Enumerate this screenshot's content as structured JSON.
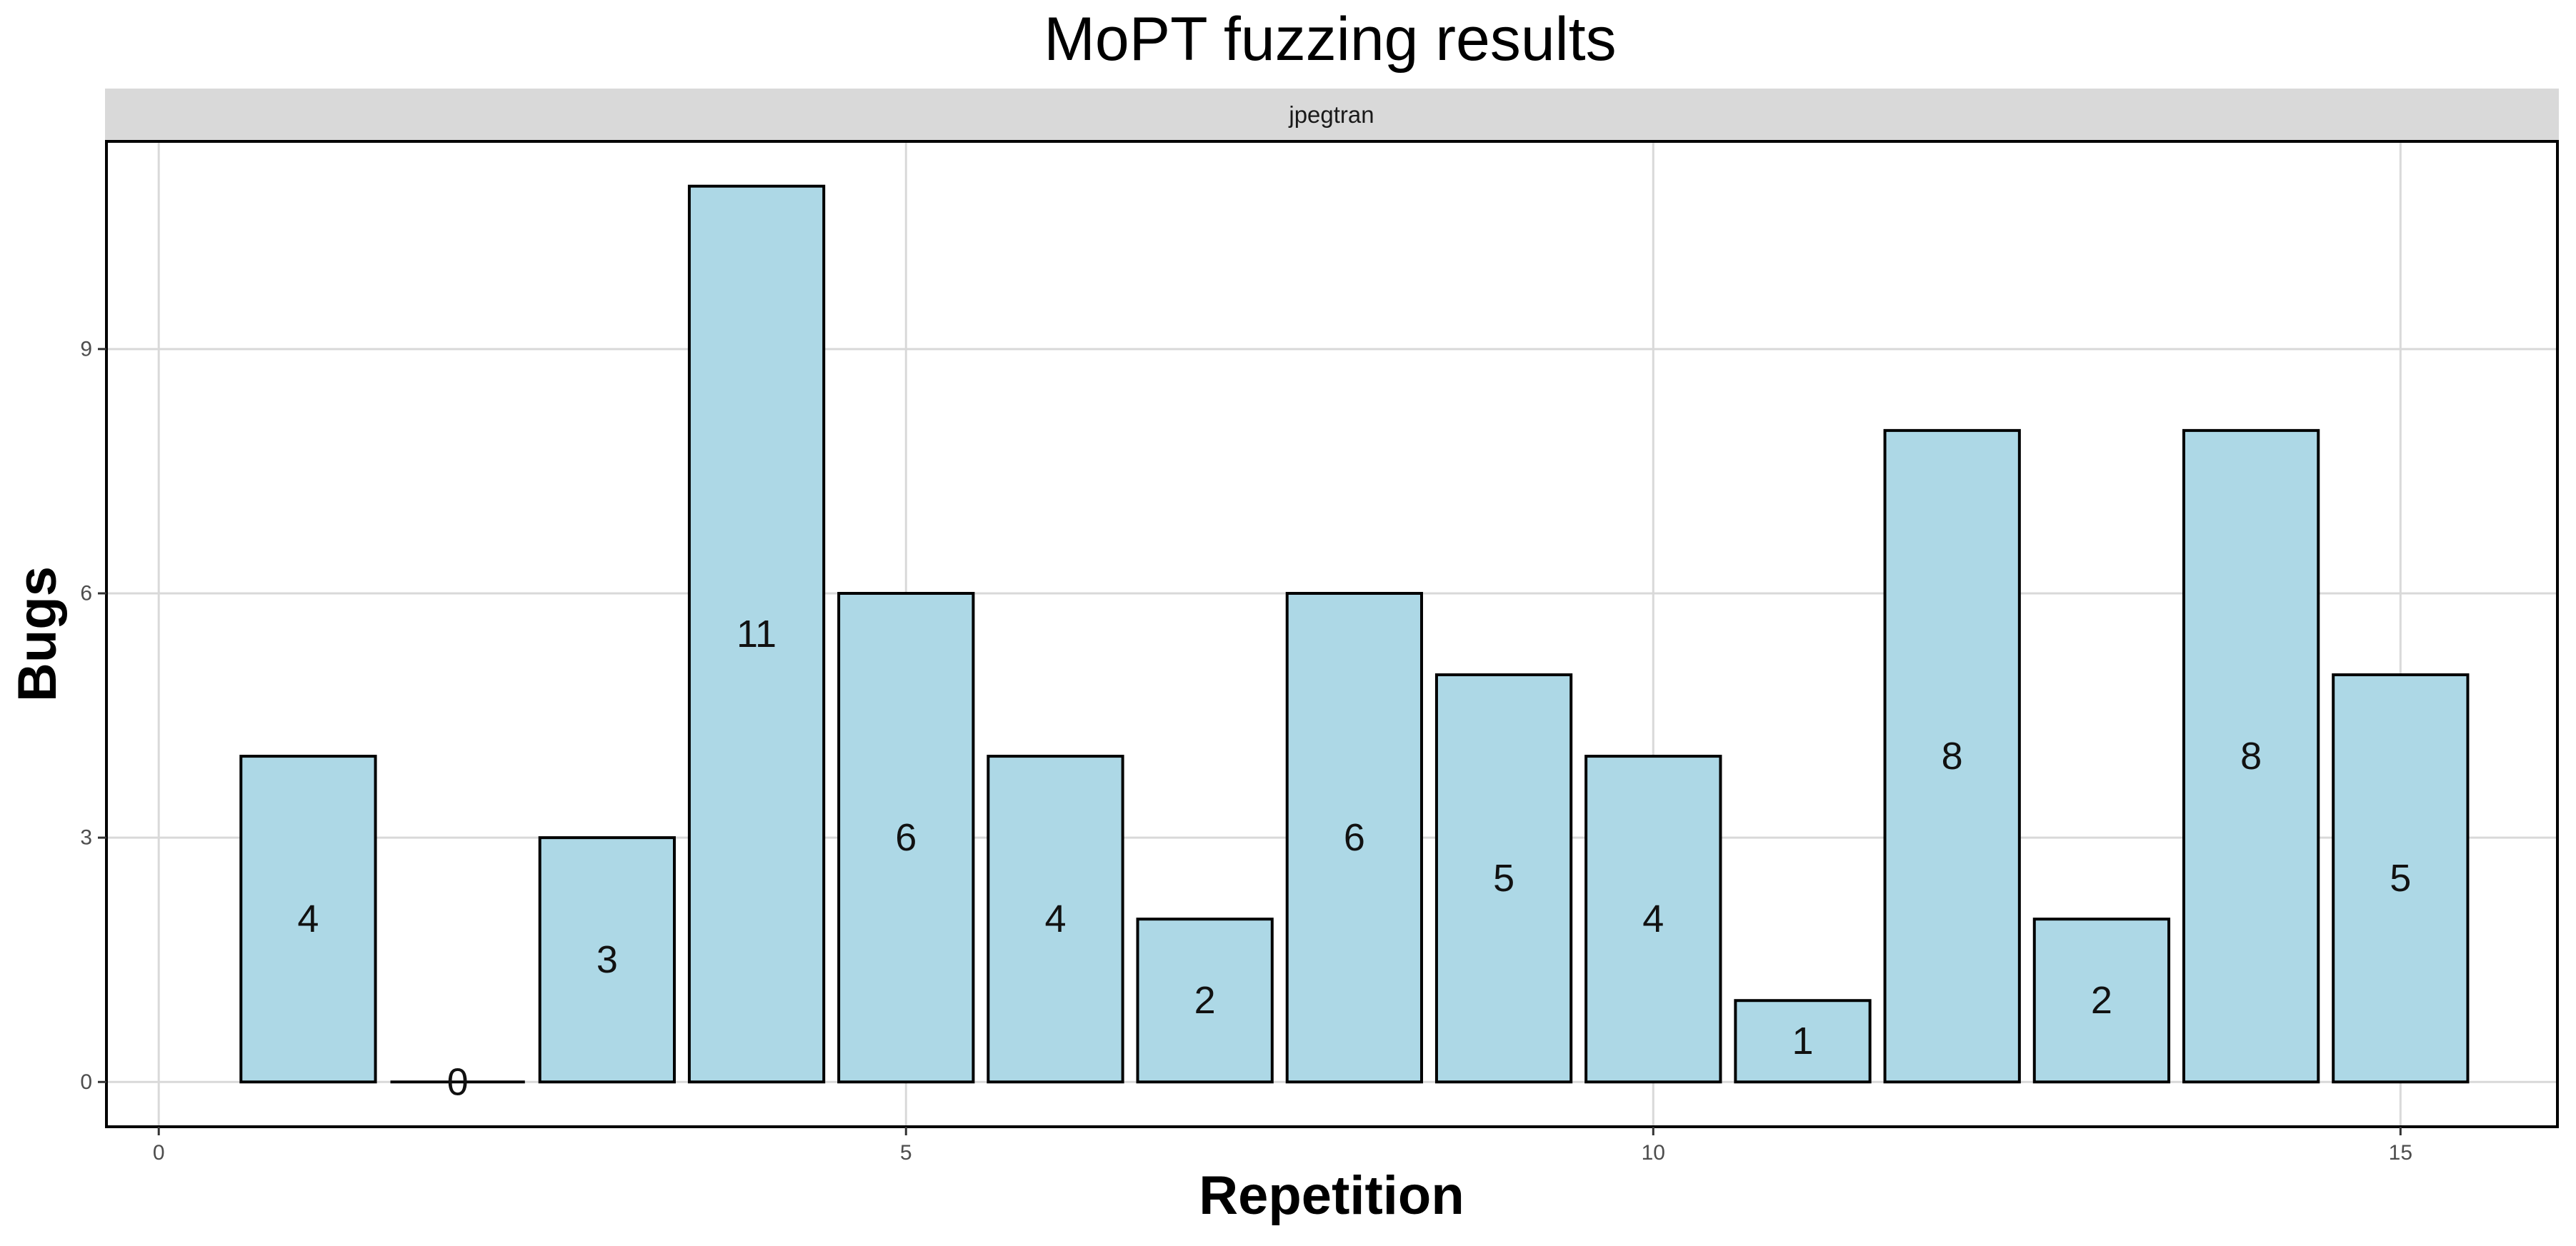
{
  "chart_data": {
    "type": "bar",
    "title": "MoPT fuzzing results",
    "facet": "jpegtran",
    "xlabel": "Repetition",
    "ylabel": "Bugs",
    "x": [
      1,
      2,
      3,
      4,
      5,
      6,
      7,
      8,
      9,
      10,
      11,
      12,
      13,
      14,
      15
    ],
    "values": [
      4,
      0,
      3,
      11,
      6,
      4,
      2,
      6,
      5,
      4,
      1,
      8,
      2,
      8,
      5
    ],
    "data_labels": [
      "4",
      "0",
      "3",
      "11",
      "6",
      "4",
      "2",
      "6",
      "5",
      "4",
      "1",
      "8",
      "2",
      "8",
      "5"
    ],
    "x_ticks": [
      0,
      5,
      10,
      15
    ],
    "x_tick_labels": [
      "0",
      "5",
      "10",
      "15"
    ],
    "y_ticks": [
      0,
      3,
      6,
      9
    ],
    "y_tick_labels": [
      "0",
      "3",
      "6",
      "9"
    ],
    "xlim": [
      -0.35,
      16.05
    ],
    "ylim": [
      -0.55,
      11.55
    ],
    "grid": true,
    "legend": "none",
    "colors": {
      "bar_fill": "#add8e6",
      "bar_stroke": "#000000",
      "grid": "#d9d9d9",
      "strip_fill": "#d9d9d9",
      "panel_border": "#000000"
    }
  }
}
